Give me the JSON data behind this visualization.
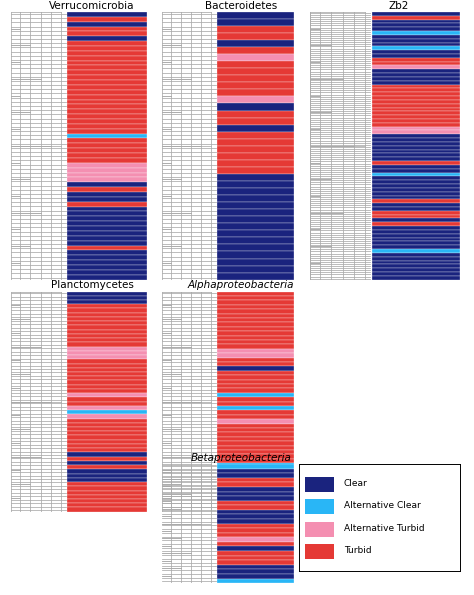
{
  "background_color": "#ffffff",
  "colors": {
    "clear": "#1a237e",
    "alt_clear": "#29b6f6",
    "alt_turbid": "#f48fb1",
    "turbid": "#e53935"
  },
  "legend_labels": [
    "Clear",
    "Alternative Clear",
    "Alternative Turbid",
    "Turbid"
  ],
  "panels": [
    {
      "name": "Verrucomicrobia",
      "col": 0,
      "row": 0,
      "n_rows": 55,
      "color_pattern": [
        "C",
        "T",
        "C",
        "T",
        "T",
        "C",
        "T",
        "T",
        "T",
        "T",
        "T",
        "T",
        "T",
        "T",
        "T",
        "T",
        "T",
        "T",
        "T",
        "T",
        "T",
        "T",
        "T",
        "T",
        "T",
        "AC",
        "T",
        "T",
        "T",
        "T",
        "T",
        "AT",
        "AT",
        "AT",
        "AT",
        "C",
        "T",
        "C",
        "C",
        "T",
        "C",
        "C",
        "C",
        "C",
        "C",
        "C",
        "C",
        "C",
        "T",
        "C",
        "C",
        "C",
        "C",
        "C",
        "C"
      ]
    },
    {
      "name": "Bacteroidetes",
      "col": 1,
      "row": 0,
      "n_rows": 38,
      "color_pattern": [
        "C",
        "C",
        "T",
        "T",
        "C",
        "T",
        "AT",
        "T",
        "T",
        "T",
        "T",
        "T",
        "AT",
        "C",
        "T",
        "T",
        "C",
        "T",
        "T",
        "T",
        "T",
        "T",
        "T",
        "C",
        "C",
        "C",
        "C",
        "C",
        "C",
        "C",
        "C",
        "C",
        "C",
        "C",
        "C",
        "C",
        "C",
        "C"
      ]
    },
    {
      "name": "Zb2",
      "col": 2,
      "row": 0,
      "n_rows": 70,
      "color_pattern": [
        "C",
        "T",
        "C",
        "C",
        "C",
        "AC",
        "C",
        "C",
        "C",
        "AC",
        "C",
        "C",
        "T",
        "T",
        "AT",
        "C",
        "C",
        "C",
        "C",
        "T",
        "T",
        "T",
        "T",
        "T",
        "T",
        "T",
        "T",
        "T",
        "T",
        "T",
        "AT",
        "AT",
        "C",
        "C",
        "C",
        "C",
        "C",
        "C",
        "C",
        "T",
        "C",
        "C",
        "AC",
        "C",
        "C",
        "C",
        "C",
        "C",
        "C",
        "T",
        "C",
        "C",
        "T",
        "T",
        "C",
        "T",
        "C",
        "C",
        "C",
        "C",
        "C",
        "C",
        "AC",
        "C",
        "C",
        "C",
        "C",
        "C",
        "C",
        "C"
      ]
    },
    {
      "name": "Alphaproteobacteria",
      "col": 1,
      "row": 1,
      "n_rows": 50,
      "color_pattern": [
        "T",
        "T",
        "T",
        "T",
        "T",
        "T",
        "T",
        "T",
        "T",
        "T",
        "T",
        "T",
        "T",
        "AT",
        "AT",
        "T",
        "T",
        "C",
        "T",
        "T",
        "T",
        "T",
        "T",
        "AC",
        "T",
        "T",
        "AC",
        "T",
        "T",
        "AT",
        "T",
        "T",
        "T",
        "T",
        "T",
        "T",
        "T",
        "T",
        "T",
        "AC",
        "T",
        "T",
        "C",
        "C",
        "C",
        "C",
        "C",
        "C",
        "C",
        "C"
      ]
    },
    {
      "name": "Planctomycetes",
      "col": 0,
      "row": 1,
      "n_rows": 52,
      "color_pattern": [
        "C",
        "C",
        "C",
        "T",
        "T",
        "T",
        "T",
        "T",
        "T",
        "T",
        "T",
        "T",
        "T",
        "AT",
        "AT",
        "AT",
        "T",
        "T",
        "T",
        "T",
        "T",
        "T",
        "T",
        "T",
        "AT",
        "T",
        "T",
        "AT",
        "AC",
        "AT",
        "T",
        "T",
        "T",
        "T",
        "T",
        "T",
        "T",
        "T",
        "C",
        "T",
        "C",
        "T",
        "C",
        "C",
        "C",
        "T",
        "T",
        "T",
        "T",
        "T",
        "T",
        "T"
      ]
    },
    {
      "name": "Betaproteobacteria",
      "col": 1,
      "row": 2,
      "n_rows": 26,
      "color_pattern": [
        "AC",
        "C",
        "C",
        "T",
        "T",
        "C",
        "C",
        "C",
        "T",
        "T",
        "C",
        "C",
        "C",
        "T",
        "T",
        "T",
        "AT",
        "T",
        "C",
        "T",
        "T",
        "T",
        "C",
        "C",
        "C",
        "AC"
      ]
    }
  ]
}
